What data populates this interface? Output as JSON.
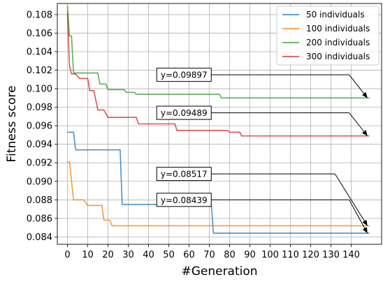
{
  "chart_data": {
    "type": "line",
    "title": "",
    "xlabel": "#Generation",
    "ylabel": "Fitness score",
    "xlim": [
      -5,
      155
    ],
    "ylim": [
      0.0832,
      0.1092
    ],
    "xticks": [
      "0",
      "10",
      "20",
      "30",
      "40",
      "50",
      "60",
      "70",
      "80",
      "90",
      "100",
      "110",
      "120",
      "130",
      "140"
    ],
    "yticks": [
      "0.084",
      "0.086",
      "0.088",
      "0.090",
      "0.092",
      "0.094",
      "0.096",
      "0.098",
      "0.100",
      "0.102",
      "0.104",
      "0.106",
      "0.108"
    ],
    "grid": true,
    "legend_position": "top-right",
    "series": [
      {
        "name": "50 individuals",
        "color": "#1f77b4",
        "points": [
          [
            0,
            0.0953
          ],
          [
            3,
            0.0953
          ],
          [
            4,
            0.0934
          ],
          [
            26,
            0.0934
          ],
          [
            27,
            0.0875
          ],
          [
            71,
            0.0875
          ],
          [
            72,
            0.0844
          ],
          [
            149,
            0.0844
          ]
        ]
      },
      {
        "name": "100 individuals",
        "color": "#ff7f0e",
        "points": [
          [
            0,
            0.0921
          ],
          [
            1,
            0.0921
          ],
          [
            3,
            0.088
          ],
          [
            8,
            0.088
          ],
          [
            10,
            0.0874
          ],
          [
            17,
            0.0874
          ],
          [
            18,
            0.0858
          ],
          [
            21,
            0.0858
          ],
          [
            22,
            0.0852
          ],
          [
            149,
            0.0852
          ]
        ]
      },
      {
        "name": "200 individuals",
        "color": "#2ca02c",
        "points": [
          [
            0,
            0.109
          ],
          [
            1,
            0.1057
          ],
          [
            2,
            0.1057
          ],
          [
            3,
            0.1017
          ],
          [
            15,
            0.1017
          ],
          [
            16,
            0.1005
          ],
          [
            19,
            0.1005
          ],
          [
            20,
            0.0999
          ],
          [
            28,
            0.0999
          ],
          [
            29,
            0.0996
          ],
          [
            33,
            0.0996
          ],
          [
            34,
            0.0994
          ],
          [
            75,
            0.0994
          ],
          [
            76,
            0.099
          ],
          [
            149,
            0.099
          ]
        ]
      },
      {
        "name": "300 individuals",
        "color": "#d62728",
        "points": [
          [
            0,
            0.1082
          ],
          [
            1,
            0.1025
          ],
          [
            2,
            0.1016
          ],
          [
            4,
            0.1016
          ],
          [
            6,
            0.1011
          ],
          [
            10,
            0.1011
          ],
          [
            11,
            0.0998
          ],
          [
            13,
            0.0998
          ],
          [
            15,
            0.0977
          ],
          [
            18,
            0.0977
          ],
          [
            20,
            0.0969
          ],
          [
            34,
            0.0969
          ],
          [
            35,
            0.0962
          ],
          [
            53,
            0.0962
          ],
          [
            54,
            0.0955
          ],
          [
            79,
            0.0955
          ],
          [
            80,
            0.0953
          ],
          [
            85,
            0.0953
          ],
          [
            86,
            0.0949
          ],
          [
            149,
            0.0949
          ]
        ]
      }
    ],
    "annotations": [
      {
        "text": "y=0.09897",
        "series": 2,
        "point": [
          148,
          0.099
        ],
        "label_at": [
          57.5,
          0.1015
        ],
        "elbow_at": [
          139,
          0.1015
        ]
      },
      {
        "text": "y=0.09489",
        "series": 3,
        "point": [
          148,
          0.0949
        ],
        "label_at": [
          57.5,
          0.0974
        ],
        "elbow_at": [
          139,
          0.0974
        ]
      },
      {
        "text": "y=0.08517",
        "series": 1,
        "point": [
          148,
          0.0852
        ],
        "label_at": [
          57.5,
          0.0908
        ],
        "elbow_at": [
          132,
          0.0908
        ]
      },
      {
        "text": "y=0.08439",
        "series": 0,
        "point": [
          148,
          0.0844
        ],
        "label_at": [
          57.5,
          0.088
        ],
        "elbow_at": [
          139,
          0.088
        ]
      }
    ]
  }
}
